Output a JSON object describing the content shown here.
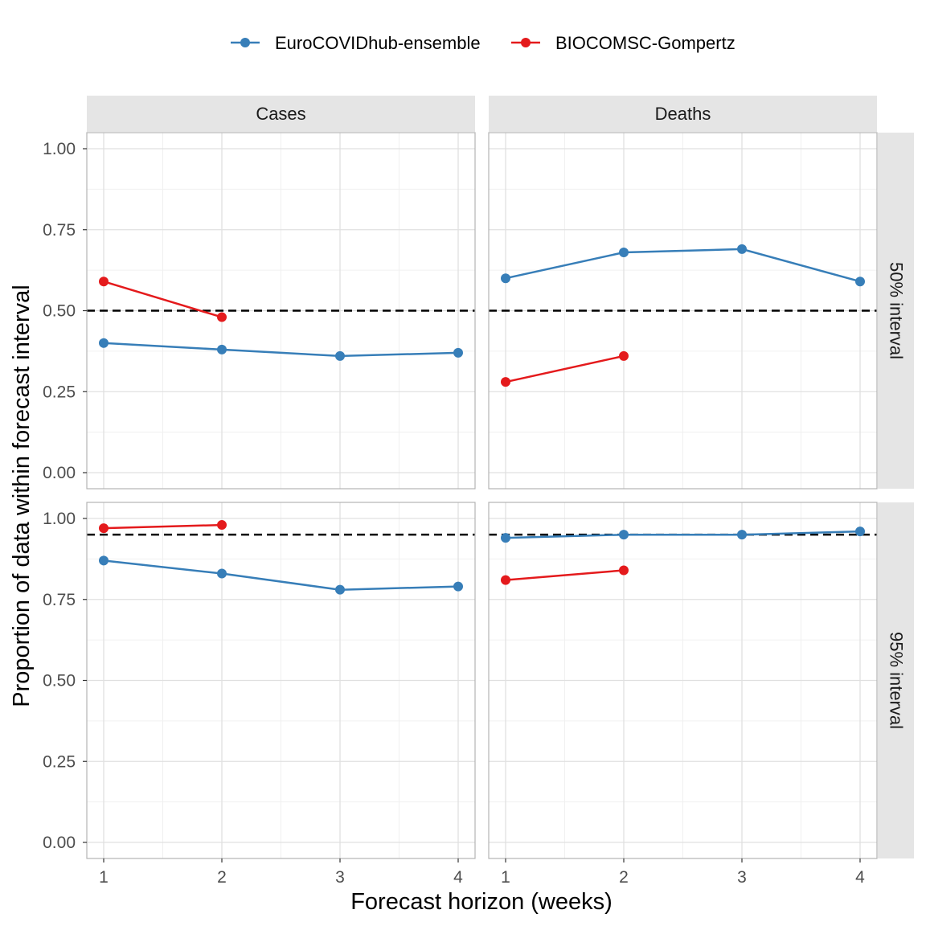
{
  "legend": {
    "position": "top",
    "items": [
      {
        "name": "EuroCOVIDhub-ensemble",
        "color": "#377eb8"
      },
      {
        "name": "BIOCOMSC-Gompertz",
        "color": "#e41a1c"
      }
    ]
  },
  "chart_data": {
    "type": "line",
    "facet_columns": [
      "Cases",
      "Deaths"
    ],
    "facet_rows": [
      "50% interval",
      "95% interval"
    ],
    "xlabel": "Forecast horizon (weeks)",
    "ylabel": "Proportion of data within forecast interval",
    "x_ticks": [
      1,
      2,
      3,
      4
    ],
    "y_ticks": [
      0,
      0.25,
      0.5,
      0.75,
      1
    ],
    "y_tick_labels": [
      "0.00",
      "0.25",
      "0.50",
      "0.75",
      "1.00"
    ],
    "xlim": [
      1,
      4
    ],
    "ylim": [
      0,
      1
    ],
    "grid": true,
    "panels": [
      {
        "column": "Cases",
        "row": "50% interval",
        "reference": 0.5,
        "series": [
          {
            "name": "EuroCOVIDhub-ensemble",
            "color": "#377eb8",
            "x": [
              1,
              2,
              3,
              4
            ],
            "y": [
              0.4,
              0.38,
              0.36,
              0.37
            ]
          },
          {
            "name": "BIOCOMSC-Gompertz",
            "color": "#e41a1c",
            "x": [
              1,
              2
            ],
            "y": [
              0.59,
              0.48
            ]
          }
        ]
      },
      {
        "column": "Deaths",
        "row": "50% interval",
        "reference": 0.5,
        "series": [
          {
            "name": "EuroCOVIDhub-ensemble",
            "color": "#377eb8",
            "x": [
              1,
              2,
              3,
              4
            ],
            "y": [
              0.6,
              0.68,
              0.69,
              0.59
            ]
          },
          {
            "name": "BIOCOMSC-Gompertz",
            "color": "#e41a1c",
            "x": [
              1,
              2
            ],
            "y": [
              0.28,
              0.36
            ]
          }
        ]
      },
      {
        "column": "Cases",
        "row": "95% interval",
        "reference": 0.95,
        "series": [
          {
            "name": "EuroCOVIDhub-ensemble",
            "color": "#377eb8",
            "x": [
              1,
              2,
              3,
              4
            ],
            "y": [
              0.87,
              0.83,
              0.78,
              0.79
            ]
          },
          {
            "name": "BIOCOMSC-Gompertz",
            "color": "#e41a1c",
            "x": [
              1,
              2
            ],
            "y": [
              0.97,
              0.98
            ]
          }
        ]
      },
      {
        "column": "Deaths",
        "row": "95% interval",
        "reference": 0.95,
        "series": [
          {
            "name": "EuroCOVIDhub-ensemble",
            "color": "#377eb8",
            "x": [
              1,
              2,
              3,
              4
            ],
            "y": [
              0.94,
              0.95,
              0.95,
              0.96
            ]
          },
          {
            "name": "BIOCOMSC-Gompertz",
            "color": "#e41a1c",
            "x": [
              1,
              2
            ],
            "y": [
              0.81,
              0.84
            ]
          }
        ]
      }
    ]
  }
}
